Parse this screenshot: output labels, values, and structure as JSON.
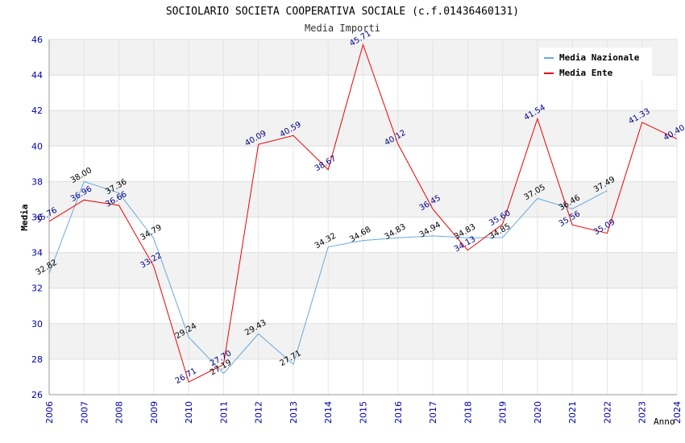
{
  "chart_data": {
    "type": "line",
    "title": "SOCIOLARIO SOCIETA COOPERATIVA SOCIALE (c.f.01436460131)",
    "subtitle": "Media Importi",
    "xlabel": "Anno",
    "ylabel": "Media",
    "ylim": [
      26,
      46
    ],
    "yticks": [
      26,
      28,
      30,
      32,
      34,
      36,
      38,
      40,
      42,
      44,
      46
    ],
    "x": [
      2006,
      2007,
      2008,
      2009,
      2010,
      2011,
      2012,
      2013,
      2014,
      2015,
      2016,
      2017,
      2018,
      2019,
      2020,
      2021,
      2022,
      2023,
      2024
    ],
    "legend_position": "top-right",
    "series": [
      {
        "name": "Media Nazionale",
        "color": "#66aadd",
        "values": [
          32.82,
          38.0,
          37.36,
          34.79,
          29.24,
          27.19,
          29.43,
          27.71,
          34.32,
          34.68,
          34.83,
          34.94,
          34.83,
          34.85,
          37.05,
          36.46,
          37.49,
          null,
          null
        ],
        "labels": [
          "32.82",
          "38.00",
          "37.36",
          "34.79",
          "29.24",
          "27.19",
          "29.43",
          "27.71",
          "34.32",
          "34.68",
          "34.83",
          "34.94",
          "34.83",
          "34.85",
          "37.05",
          "36.46",
          "37.49",
          null,
          null
        ]
      },
      {
        "name": "Media Ente",
        "color": "#ee0000",
        "values": [
          35.76,
          36.96,
          36.66,
          33.22,
          26.71,
          27.7,
          40.09,
          40.59,
          38.67,
          45.71,
          40.12,
          36.45,
          34.13,
          35.6,
          41.54,
          35.56,
          35.09,
          41.33,
          40.4
        ],
        "labels": [
          "35.76",
          "36.96",
          "36.66",
          "33.22",
          "26.71",
          "27.70",
          "40.09",
          "40.59",
          "38.67",
          "45.71",
          "40.12",
          "36.45",
          "34.13",
          "35.60",
          "41.54",
          "35.56",
          "35.09",
          "41.33",
          "40.40"
        ]
      }
    ]
  }
}
